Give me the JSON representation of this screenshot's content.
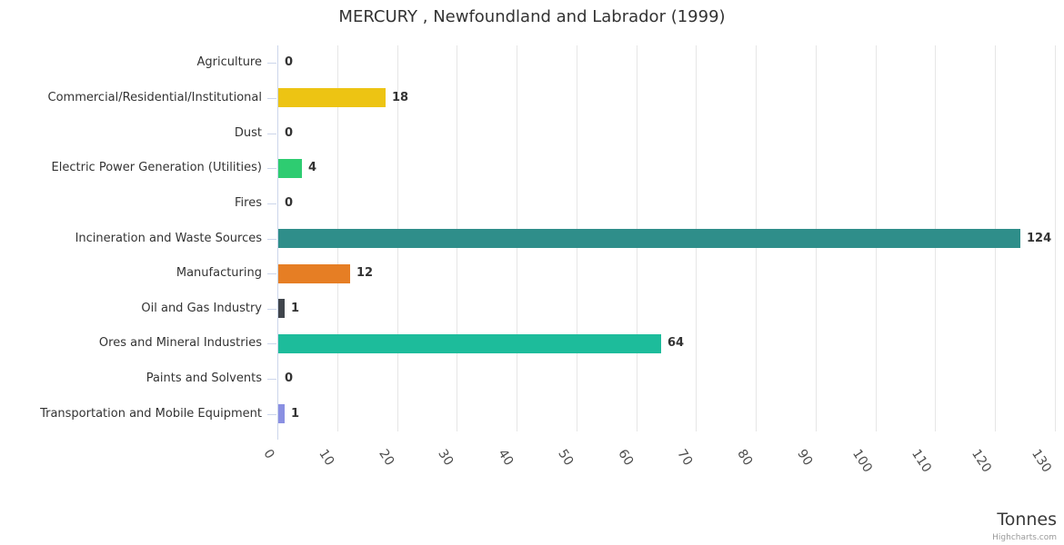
{
  "chart_data": {
    "type": "bar",
    "title": "MERCURY , Newfoundland and Labrador (1999)",
    "categories": [
      "Agriculture",
      "Commercial/Residential/Institutional",
      "Dust",
      "Electric Power Generation (Utilities)",
      "Fires",
      "Incineration and Waste Sources",
      "Manufacturing",
      "Oil and Gas Industry",
      "Ores and Mineral Industries",
      "Paints and Solvents",
      "Transportation and Mobile Equipment"
    ],
    "values": [
      0,
      18,
      0,
      4,
      0,
      124,
      12,
      1,
      64,
      0,
      1
    ],
    "value_labels": [
      "0",
      "18",
      "0",
      "4",
      "0",
      "124",
      "12",
      "1",
      "64",
      "0",
      "1"
    ],
    "bar_colors": [
      null,
      "#edc413",
      null,
      "#2ecc71",
      null,
      "#2f8e8a",
      "#e67e24",
      "#40454c",
      "#1dbc9b",
      null,
      "#8a90e2"
    ],
    "xlabel": "",
    "ylabel": "Tonnes",
    "value_axis_ticks": [
      0,
      10,
      20,
      30,
      40,
      50,
      60,
      70,
      80,
      90,
      100,
      110,
      120,
      130
    ],
    "value_axis_range": [
      0,
      130
    ],
    "grid": true,
    "legend": "none",
    "gridline_color": "#e6e6e6",
    "axis_line_color": "#ccd6eb",
    "label_color": "#333333",
    "tick_label_color": "#4d4d4d"
  },
  "footer": {
    "axis_title": "Tonnes",
    "credits": "Highcharts.com"
  }
}
